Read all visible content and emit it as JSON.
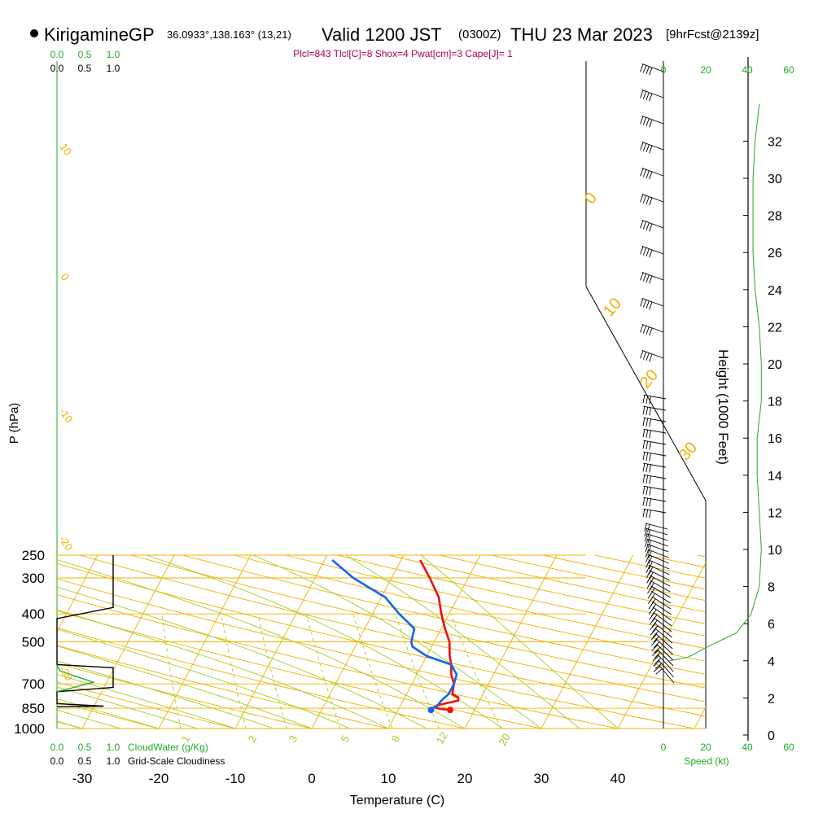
{
  "header": {
    "station_name": "KirigamineGP",
    "coords": "36.0933°,138.163° (13,21)",
    "valid_label": "Valid 1200 JST",
    "zulu_label": "(0300Z)",
    "date_label": "THU 23 Mar 2023",
    "forecast_label": "[9hrFcst@2139z]",
    "indices": "Plcl=843 Tlcl[C]=8 Shox=4 Pwat[cm]=3 Cape[J]= 1"
  },
  "colors": {
    "isotherm": "#f0b000",
    "dry_adiabat": "#f0b000",
    "moist_adiabat": "#a0d020",
    "mixing_ratio": "#a0d020",
    "temperature": "#ee1111",
    "dewpoint": "#1166ee",
    "cloud_water": "#22aa22",
    "cloudiness": "#000000",
    "label_green": "#22aa22",
    "index_text": "#aa0055",
    "label_orange": "#f0b000"
  },
  "chart_data": [
    {
      "type": "line",
      "name": "skew-T log-P sounding",
      "xlabel": "Temperature (C)",
      "ylabel": "P (hPa)",
      "x_ticks": [
        -30,
        -20,
        -10,
        0,
        10,
        20,
        30,
        40
      ],
      "pressure_ticks": [
        250,
        300,
        400,
        500,
        700,
        850,
        1000
      ],
      "isotherm_labels": [
        "10",
        "0",
        "-10",
        "-20",
        "-30"
      ],
      "right_isotherm_labels": [
        "0",
        "10",
        "20",
        "30"
      ],
      "mixing_ratio_labels": [
        "1",
        "2",
        "3",
        "5",
        "8",
        "12",
        "20"
      ],
      "temperature_profile": [
        {
          "p": 862,
          "t": 16.8
        },
        {
          "p": 855,
          "t": 15.5
        },
        {
          "p": 845,
          "t": 14.5
        },
        {
          "p": 830,
          "t": 14.8
        },
        {
          "p": 800,
          "t": 17.2
        },
        {
          "p": 780,
          "t": 17.0
        },
        {
          "p": 760,
          "t": 16.0
        },
        {
          "p": 700,
          "t": 15.5
        },
        {
          "p": 650,
          "t": 14.5
        },
        {
          "p": 600,
          "t": 13.8
        },
        {
          "p": 560,
          "t": 13.0
        },
        {
          "p": 500,
          "t": 12.0
        },
        {
          "p": 450,
          "t": 10.5
        },
        {
          "p": 400,
          "t": 9.0
        },
        {
          "p": 350,
          "t": 7.5
        },
        {
          "p": 300,
          "t": 5.0
        },
        {
          "p": 260,
          "t": 2.5
        }
      ],
      "dewpoint_profile": [
        {
          "p": 862,
          "t": 14.3
        },
        {
          "p": 855,
          "t": 14.0
        },
        {
          "p": 840,
          "t": 14.8
        },
        {
          "p": 800,
          "t": 15.0
        },
        {
          "p": 760,
          "t": 15.5
        },
        {
          "p": 700,
          "t": 15.5
        },
        {
          "p": 650,
          "t": 15.2
        },
        {
          "p": 600,
          "t": 13.8
        },
        {
          "p": 560,
          "t": 10.0
        },
        {
          "p": 520,
          "t": 7.5
        },
        {
          "p": 500,
          "t": 7.0
        },
        {
          "p": 450,
          "t": 6.5
        },
        {
          "p": 400,
          "t": 3.5
        },
        {
          "p": 350,
          "t": 0.5
        },
        {
          "p": 300,
          "t": -5.0
        },
        {
          "p": 260,
          "t": -9.0
        }
      ]
    },
    {
      "type": "line",
      "name": "Cloud water and grid-scale cloudiness",
      "cloud_water_label": "CloudWater (g/Kg)",
      "cloudiness_label": "Grid-Scale Cloudiness",
      "top_ticks_green": [
        "0.0",
        "0.5",
        "1.0"
      ],
      "top_ticks_black": [
        "0.0",
        "0.5",
        "1.0"
      ],
      "bottom_ticks_green": [
        "0.0",
        "0.5",
        "1.0"
      ],
      "bottom_ticks_black": [
        "0.0",
        "0.5",
        "1.0"
      ],
      "cloud_water": [
        {
          "p": 600,
          "v": 0.0
        },
        {
          "p": 630,
          "v": 0.05
        },
        {
          "p": 660,
          "v": 0.35
        },
        {
          "p": 690,
          "v": 0.65
        },
        {
          "p": 720,
          "v": 0.3
        },
        {
          "p": 745,
          "v": 0.0
        }
      ],
      "cloudiness": [
        {
          "p": 250,
          "v": 1.0
        },
        {
          "p": 380,
          "v": 1.0
        },
        {
          "p": 415,
          "v": 0.0
        },
        {
          "p": 600,
          "v": 0.0
        },
        {
          "p": 615,
          "v": 1.0
        },
        {
          "p": 720,
          "v": 1.0
        },
        {
          "p": 745,
          "v": 0.0
        },
        {
          "p": 820,
          "v": 0.0
        },
        {
          "p": 836,
          "v": 0.83
        },
        {
          "p": 840,
          "v": 0.0
        }
      ]
    },
    {
      "type": "line",
      "name": "Wind speed profile",
      "xlabel": "Speed (kt)",
      "speed_ticks_top": [
        "0",
        "20",
        "40",
        "60"
      ],
      "speed_ticks_bottom": [
        "0",
        "20",
        "40",
        "60"
      ],
      "height_label": "Height (1000 Feet)",
      "height_ticks": [
        0,
        2,
        4,
        6,
        8,
        10,
        12,
        14,
        16,
        18,
        20,
        22,
        24,
        26,
        28,
        30,
        32
      ],
      "speed_profile": [
        {
          "h": 4.0,
          "s": 3
        },
        {
          "h": 4.2,
          "s": 12
        },
        {
          "h": 4.8,
          "s": 22
        },
        {
          "h": 5.5,
          "s": 35
        },
        {
          "h": 6.5,
          "s": 42
        },
        {
          "h": 8.0,
          "s": 46
        },
        {
          "h": 10.0,
          "s": 47
        },
        {
          "h": 12.0,
          "s": 46
        },
        {
          "h": 14.0,
          "s": 45
        },
        {
          "h": 16.0,
          "s": 45
        },
        {
          "h": 18.0,
          "s": 47
        },
        {
          "h": 20.0,
          "s": 47
        },
        {
          "h": 22.0,
          "s": 46
        },
        {
          "h": 24.0,
          "s": 44
        },
        {
          "h": 26.0,
          "s": 43
        },
        {
          "h": 28.0,
          "s": 43
        },
        {
          "h": 30.0,
          "s": 43
        },
        {
          "h": 32.0,
          "s": 44
        },
        {
          "h": 34.0,
          "s": 46
        }
      ]
    }
  ]
}
